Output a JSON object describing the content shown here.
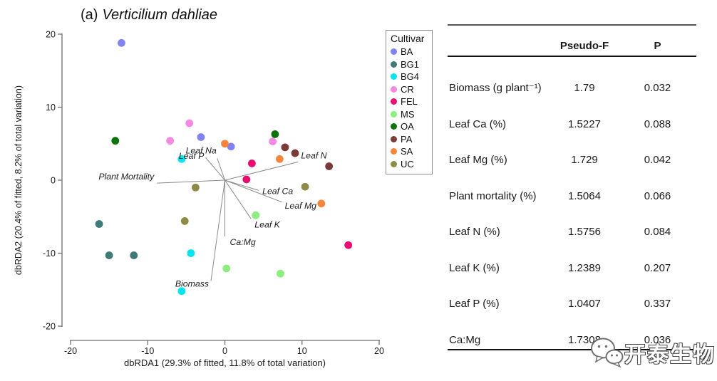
{
  "figure_title": {
    "prefix": "(a)",
    "species": "Verticilium dahliae"
  },
  "chart_data": {
    "type": "scatter",
    "title": "(a) Verticilium dahliae",
    "xlabel": "dbRDA1 (29.3% of fitted, 11.8% of total variation)",
    "ylabel": "dbRDA2 (20.4% of fitted, 8.2% of total variation)",
    "xlim": [
      -20,
      20
    ],
    "ylim": [
      -20,
      20
    ],
    "xticks": [
      -20,
      -10,
      0,
      10,
      20
    ],
    "yticks": [
      20,
      10,
      0,
      -10,
      -20
    ],
    "grid": false,
    "legend": {
      "title": "Cultivar",
      "position": "right-outside"
    },
    "series": [
      {
        "name": "BA",
        "color": "#8282F0",
        "points": [
          [
            -13.4,
            18.8
          ],
          [
            -3.1,
            5.9
          ],
          [
            0.8,
            4.6
          ]
        ]
      },
      {
        "name": "BG1",
        "color": "#3D7A78",
        "points": [
          [
            -16.3,
            -6.0
          ],
          [
            -15.0,
            -10.3
          ],
          [
            -11.8,
            -10.3
          ]
        ]
      },
      {
        "name": "BG4",
        "color": "#00E6EE",
        "points": [
          [
            -5.6,
            2.9
          ],
          [
            -4.4,
            -10.0
          ],
          [
            -5.6,
            -15.2
          ]
        ]
      },
      {
        "name": "CR",
        "color": "#F689E3",
        "points": [
          [
            -4.6,
            7.8
          ],
          [
            -7.1,
            5.4
          ],
          [
            6.2,
            5.3
          ]
        ]
      },
      {
        "name": "FEL",
        "color": "#EA0C70",
        "points": [
          [
            3.5,
            2.3
          ],
          [
            2.8,
            0.1
          ],
          [
            16.0,
            -8.9
          ]
        ]
      },
      {
        "name": "MS",
        "color": "#8CEE7C",
        "points": [
          [
            0.2,
            -12.1
          ],
          [
            4.0,
            -4.8
          ],
          [
            7.2,
            -12.8
          ]
        ]
      },
      {
        "name": "OA",
        "color": "#0A730A",
        "points": [
          [
            -14.2,
            5.4
          ],
          [
            6.5,
            6.3
          ]
        ]
      },
      {
        "name": "PA",
        "color": "#7A3A38",
        "points": [
          [
            7.8,
            4.5
          ],
          [
            9.1,
            3.7
          ],
          [
            13.5,
            1.9
          ]
        ]
      },
      {
        "name": "SA",
        "color": "#F5873D",
        "points": [
          [
            0.0,
            5.0
          ],
          [
            7.1,
            2.9
          ],
          [
            12.5,
            -3.2
          ]
        ]
      },
      {
        "name": "UC",
        "color": "#8C8C46",
        "points": [
          [
            -3.8,
            -1.0
          ],
          [
            -5.2,
            -5.6
          ],
          [
            10.4,
            -0.9
          ]
        ]
      }
    ],
    "vectors": [
      {
        "label": "Plant Mortality",
        "x": -8.8,
        "y": -0.4,
        "anchor": "end",
        "dx": -4,
        "dy": -5
      },
      {
        "label": "Leaf P",
        "x": -2.5,
        "y": 3.1,
        "anchor": "end",
        "dx": -2,
        "dy": 2
      },
      {
        "label": "Leaf Na",
        "x": -1.0,
        "y": 3.0,
        "anchor": "end",
        "dx": -1,
        "dy": -7
      },
      {
        "label": "Leaf N",
        "x": 9.5,
        "y": 2.5,
        "anchor": "start",
        "dx": 4,
        "dy": -5
      },
      {
        "label": "Leaf Ca",
        "x": 4.4,
        "y": -1.4,
        "anchor": "start",
        "dx": 5,
        "dy": 5
      },
      {
        "label": "Leaf Mg",
        "x": 7.4,
        "y": -3.0,
        "anchor": "start",
        "dx": 4,
        "dy": 9
      },
      {
        "label": "Leaf K",
        "x": 3.4,
        "y": -5.3,
        "anchor": "start",
        "dx": 5,
        "dy": 12
      },
      {
        "label": "Ca:Mg",
        "x": 0.0,
        "y": -7.7,
        "anchor": "start",
        "dx": 7,
        "dy": 12
      },
      {
        "label": "Biomass",
        "x": -1.8,
        "y": -13.8,
        "anchor": "end",
        "dx": -3,
        "dy": 8
      }
    ]
  },
  "table": {
    "headers": {
      "pseudo_f": "Pseudo-F",
      "p": "P"
    },
    "rows": [
      {
        "label": "Biomass (g plant⁻¹)",
        "pseudo_f": "1.79",
        "p": "0.032"
      },
      {
        "label": "Leaf Ca (%)",
        "pseudo_f": "1.5227",
        "p": "0.088"
      },
      {
        "label": "Leaf Mg (%)",
        "pseudo_f": "1.729",
        "p": "0.042"
      },
      {
        "label": "Plant mortality (%)",
        "pseudo_f": "1.5064",
        "p": "0.066"
      },
      {
        "label": "Leaf N (%)",
        "pseudo_f": "1.5756",
        "p": "0.084"
      },
      {
        "label": "Leaf K (%)",
        "pseudo_f": "1.2389",
        "p": "0.207"
      },
      {
        "label": "Leaf P (%)",
        "pseudo_f": "1.0407",
        "p": "0.337"
      },
      {
        "label": "Ca:Mg",
        "pseudo_f": "1.7308",
        "p": "0.036"
      }
    ]
  },
  "watermark": {
    "text": "开泰生物",
    "icon": "wechat-icon"
  }
}
